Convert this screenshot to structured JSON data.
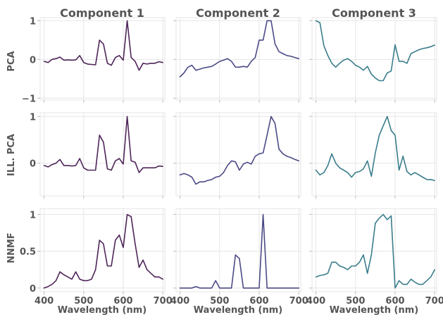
{
  "chart_data": {
    "type": "line",
    "columns": [
      "Component 1",
      "Component 2",
      "Component 3"
    ],
    "rows": [
      "PCA",
      "ILL. PCA",
      "NNMF"
    ],
    "xlabel": "Wavelength (nm)",
    "xlim": [
      390,
      705
    ],
    "xticks": [
      400,
      500,
      600,
      700
    ],
    "x": [
      400,
      410,
      420,
      430,
      440,
      450,
      460,
      470,
      480,
      490,
      500,
      510,
      520,
      530,
      540,
      550,
      560,
      570,
      580,
      590,
      600,
      610,
      620,
      630,
      640,
      650,
      660,
      670,
      680,
      690,
      700
    ],
    "colors": {
      "component_1": "#4e2558",
      "component_2": "#4b4a86",
      "component_3": "#3a7d8c",
      "grid": "#e6e6e6",
      "text": "#555555"
    },
    "panels": [
      {
        "row": "PCA",
        "column": "Component 1",
        "ylim": [
          -1.05,
          1.08
        ],
        "yticks": [
          1,
          0,
          -1
        ],
        "y": [
          -0.05,
          -0.08,
          0.0,
          0.02,
          0.06,
          -0.02,
          -0.01,
          -0.02,
          -0.01,
          0.1,
          -0.08,
          -0.12,
          -0.13,
          -0.14,
          0.5,
          0.4,
          -0.1,
          -0.15,
          0.05,
          0.1,
          -0.02,
          1.0,
          0.05,
          -0.05,
          -0.28,
          -0.1,
          -0.12,
          -0.1,
          -0.1,
          -0.06,
          -0.08
        ]
      },
      {
        "row": "PCA",
        "column": "Component 2",
        "ylim": [
          -1.05,
          1.08
        ],
        "yticks": [
          1,
          0,
          -1
        ],
        "y": [
          -0.45,
          -0.35,
          -0.2,
          -0.15,
          -0.28,
          -0.25,
          -0.22,
          -0.2,
          -0.18,
          -0.12,
          -0.05,
          -0.02,
          0.02,
          -0.05,
          -0.2,
          -0.2,
          -0.18,
          -0.2,
          -0.05,
          0.05,
          0.5,
          0.5,
          1.0,
          1.0,
          0.4,
          0.2,
          0.15,
          0.1,
          0.08,
          0.05,
          0.02
        ]
      },
      {
        "row": "PCA",
        "column": "Component 3",
        "ylim": [
          -1.05,
          1.08
        ],
        "yticks": [
          1,
          0,
          -1
        ],
        "y": [
          1.0,
          0.95,
          0.35,
          0.1,
          -0.1,
          -0.2,
          -0.1,
          -0.02,
          0.02,
          -0.05,
          -0.15,
          -0.2,
          -0.28,
          -0.18,
          -0.38,
          -0.48,
          -0.55,
          -0.55,
          -0.35,
          -0.3,
          0.38,
          -0.05,
          -0.05,
          -0.1,
          0.15,
          0.2,
          0.25,
          0.28,
          0.3,
          0.33,
          0.37
        ]
      },
      {
        "row": "ILL. PCA",
        "column": "Component 1",
        "ylim": [
          -0.7,
          1.08
        ],
        "yticks": [
          1,
          0
        ],
        "y": [
          -0.05,
          -0.08,
          -0.03,
          0.0,
          0.08,
          -0.05,
          -0.05,
          -0.06,
          -0.05,
          0.1,
          -0.1,
          -0.15,
          -0.15,
          -0.15,
          0.6,
          0.45,
          -0.12,
          -0.15,
          0.05,
          0.1,
          -0.02,
          1.0,
          0.05,
          0.02,
          -0.2,
          -0.1,
          -0.1,
          -0.1,
          -0.1,
          -0.06,
          -0.07
        ]
      },
      {
        "row": "ILL. PCA",
        "column": "Component 2",
        "ylim": [
          -0.7,
          1.08
        ],
        "yticks": [
          1,
          0
        ],
        "y": [
          -0.25,
          -0.22,
          -0.25,
          -0.3,
          -0.45,
          -0.4,
          -0.4,
          -0.37,
          -0.35,
          -0.3,
          -0.28,
          -0.2,
          -0.05,
          0.05,
          0.03,
          -0.15,
          -0.02,
          0.02,
          -0.02,
          0.15,
          0.2,
          0.22,
          0.6,
          1.0,
          0.85,
          0.3,
          0.2,
          0.15,
          0.12,
          0.08,
          0.05
        ]
      },
      {
        "row": "ILL. PCA",
        "column": "Component 3",
        "ylim": [
          -0.7,
          1.08
        ],
        "yticks": [
          1,
          0
        ],
        "y": [
          -0.15,
          -0.25,
          -0.2,
          -0.05,
          0.2,
          0.0,
          -0.1,
          -0.15,
          -0.2,
          -0.3,
          -0.2,
          -0.18,
          -0.12,
          0.05,
          -0.28,
          0.22,
          0.6,
          0.8,
          1.0,
          0.7,
          0.6,
          -0.15,
          0.15,
          -0.18,
          -0.25,
          -0.2,
          -0.25,
          -0.3,
          -0.35,
          -0.35,
          -0.37
        ]
      },
      {
        "row": "NNMF",
        "column": "Component 1",
        "ylim": [
          -0.05,
          1.08
        ],
        "yticks": [
          1.0,
          0.5,
          0.0
        ],
        "y": [
          0.0,
          0.02,
          0.05,
          0.1,
          0.22,
          0.18,
          0.15,
          0.12,
          0.22,
          0.12,
          0.1,
          0.1,
          0.12,
          0.25,
          0.65,
          0.6,
          0.3,
          0.3,
          0.65,
          0.72,
          0.55,
          1.0,
          0.97,
          0.6,
          0.28,
          0.38,
          0.25,
          0.2,
          0.15,
          0.15,
          0.12
        ]
      },
      {
        "row": "NNMF",
        "column": "Component 2",
        "ylim": [
          -0.05,
          1.08
        ],
        "yticks": [
          1.0,
          0.5,
          0.0
        ],
        "y": [
          0.0,
          0.0,
          0.0,
          0.0,
          0.02,
          0.0,
          0.0,
          0.0,
          0.0,
          0.1,
          0.0,
          0.0,
          0.0,
          0.0,
          0.45,
          0.4,
          0.0,
          0.0,
          0.0,
          0.0,
          0.0,
          1.0,
          0.0,
          0.0,
          0.0,
          0.0,
          0.0,
          0.0,
          0.0,
          0.0,
          0.0
        ]
      },
      {
        "row": "NNMF",
        "column": "Component 3",
        "ylim": [
          -0.05,
          1.08
        ],
        "yticks": [
          1.0,
          0.5,
          0.0
        ],
        "y": [
          0.15,
          0.17,
          0.18,
          0.2,
          0.35,
          0.35,
          0.3,
          0.28,
          0.25,
          0.3,
          0.3,
          0.35,
          0.45,
          0.2,
          0.45,
          0.88,
          0.95,
          1.0,
          0.93,
          0.98,
          0.0,
          0.1,
          0.05,
          0.05,
          0.12,
          0.08,
          0.05,
          0.05,
          0.1,
          0.15,
          0.25
        ]
      }
    ]
  }
}
